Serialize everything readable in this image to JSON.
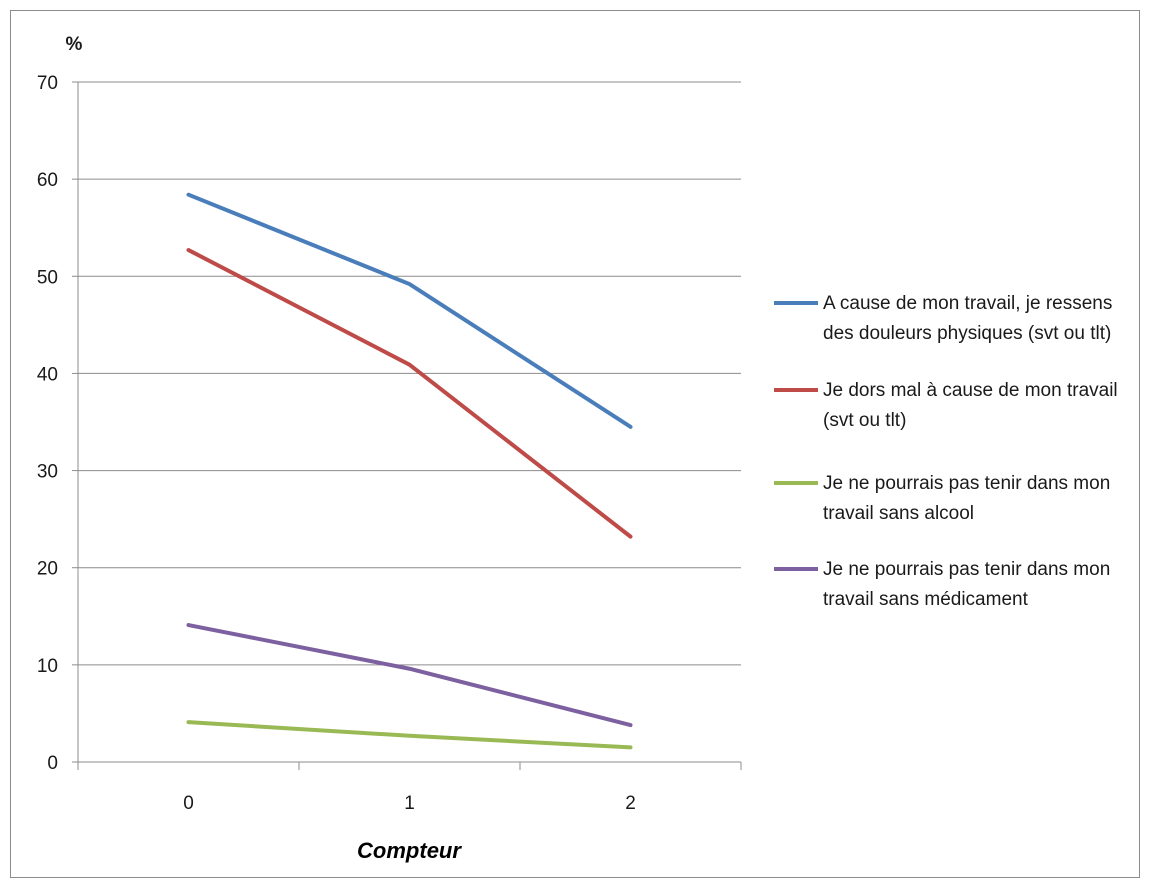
{
  "chart_data": {
    "type": "line",
    "title": "",
    "xlabel": "Compteur",
    "ylabel": "%",
    "categories": [
      "0",
      "1",
      "2"
    ],
    "ylim": [
      0,
      70
    ],
    "yticks": [
      0,
      10,
      20,
      30,
      40,
      50,
      60,
      70
    ],
    "grid": true,
    "legend_position": "right",
    "series": [
      {
        "name": "A cause de mon travail, je ressens des douleurs physiques (svt ou tlt)",
        "name_lines": [
          "A cause de mon travail, je ressens",
          "des douleurs physiques (svt ou tlt)"
        ],
        "color": "#4a7ebb",
        "values": [
          58.4,
          49.2,
          34.5
        ]
      },
      {
        "name": "Je dors mal à cause de mon travail (svt ou tlt)",
        "name_lines": [
          "Je dors mal à cause de mon travail",
          "(svt ou tlt)"
        ],
        "color": "#be4b48",
        "values": [
          52.7,
          40.9,
          23.2
        ]
      },
      {
        "name": "Je ne pourrais pas tenir dans mon travail sans alcool",
        "name_lines": [
          "Je ne pourrais pas tenir dans mon",
          "travail sans alcool"
        ],
        "color": "#98b954",
        "values": [
          4.1,
          2.7,
          1.5
        ]
      },
      {
        "name": "Je ne pourrais pas tenir dans mon travail sans médicament",
        "name_lines": [
          "Je ne pourrais pas tenir dans mon",
          "travail sans médicament"
        ],
        "color": "#7d60a0",
        "values": [
          14.1,
          9.6,
          3.8
        ]
      }
    ]
  }
}
